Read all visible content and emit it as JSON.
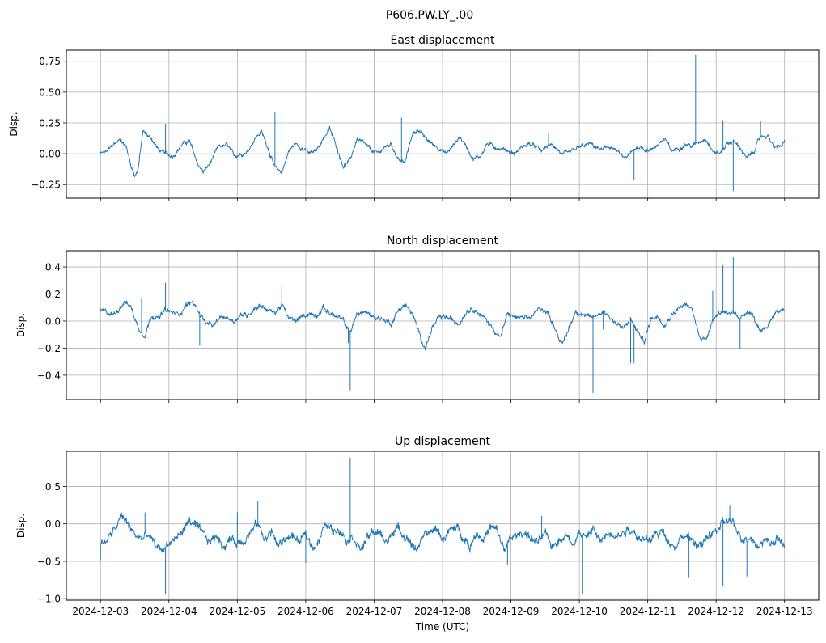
{
  "suptitle": "P606.PW.LY_.00",
  "chart_data": [
    {
      "type": "line",
      "title": "East displacement",
      "ylabel": "Disp.",
      "xlabel": "",
      "ylim": [
        -0.36,
        0.84
      ],
      "yticks": [
        0.75,
        0.5,
        0.25,
        0.0,
        -0.25
      ],
      "ytick_labels": [
        "0.75",
        "0.50",
        "0.25",
        "0.00",
        "−0.25"
      ],
      "xticks_days": [
        0,
        1,
        2,
        3,
        4,
        5,
        6,
        7,
        8,
        9,
        10
      ],
      "xlim_days": [
        -0.5,
        10.5
      ],
      "grid": true,
      "color": "#1f77b4",
      "noise": 0.018,
      "series_x_days": [
        0,
        0.1,
        0.2,
        0.3,
        0.38,
        0.45,
        0.5,
        0.55,
        0.62,
        0.66,
        0.75,
        0.85,
        0.95,
        1.05,
        1.2,
        1.3,
        1.42,
        1.5,
        1.6,
        1.72,
        1.85,
        1.95,
        2.05,
        2.15,
        2.25,
        2.35,
        2.45,
        2.55,
        2.65,
        2.75,
        2.85,
        2.95,
        3.05,
        3.15,
        3.25,
        3.35,
        3.45,
        3.55,
        3.65,
        3.75,
        3.85,
        3.95,
        4.05,
        4.15,
        4.25,
        4.35,
        4.45,
        4.55,
        4.65,
        4.75,
        4.85,
        4.95,
        5.05,
        5.15,
        5.25,
        5.35,
        5.45,
        5.55,
        5.65,
        5.75,
        5.85,
        5.95,
        6.05,
        6.15,
        6.25,
        6.35,
        6.45,
        6.55,
        6.65,
        6.75,
        6.85,
        6.95,
        7.05,
        7.15,
        7.25,
        7.35,
        7.45,
        7.55,
        7.65,
        7.75,
        7.85,
        7.95,
        8.05,
        8.15,
        8.25,
        8.35,
        8.45,
        8.55,
        8.65,
        8.75,
        8.85,
        8.95,
        9.05,
        9.15,
        9.25,
        9.35,
        9.45,
        9.55,
        9.65,
        9.75,
        9.85,
        9.95,
        10.0
      ],
      "series_values": [
        0.0,
        0.02,
        0.08,
        0.12,
        0.05,
        -0.1,
        -0.18,
        -0.12,
        0.18,
        0.16,
        0.12,
        0.03,
        0.0,
        -0.02,
        0.08,
        0.1,
        -0.08,
        -0.15,
        -0.08,
        0.05,
        0.07,
        -0.02,
        0.0,
        0.02,
        0.12,
        0.18,
        0.05,
        -0.12,
        -0.15,
        0.02,
        0.08,
        0.05,
        0.0,
        0.02,
        0.12,
        0.2,
        0.06,
        -0.1,
        -0.05,
        0.12,
        0.08,
        0.03,
        0.0,
        0.05,
        0.08,
        -0.04,
        -0.08,
        0.15,
        0.2,
        0.12,
        0.08,
        0.05,
        0.0,
        0.06,
        0.14,
        0.06,
        -0.04,
        -0.02,
        0.08,
        0.06,
        0.04,
        0.03,
        0.0,
        0.05,
        0.08,
        0.06,
        0.02,
        0.07,
        0.06,
        -0.01,
        0.0,
        0.04,
        0.06,
        0.08,
        0.05,
        0.03,
        0.06,
        0.02,
        -0.04,
        0.0,
        0.06,
        0.04,
        0.03,
        0.08,
        0.12,
        0.02,
        0.05,
        0.08,
        0.06,
        0.1,
        0.13,
        0.02,
        0.0,
        0.08,
        0.1,
        0.05,
        -0.04,
        0.02,
        0.14,
        0.15,
        0.05,
        0.06,
        0.1
      ],
      "spikes": [
        {
          "x": 0.95,
          "y": 0.24
        },
        {
          "x": 2.55,
          "y": 0.34
        },
        {
          "x": 4.4,
          "y": 0.29
        },
        {
          "x": 6.55,
          "y": 0.16
        },
        {
          "x": 7.8,
          "y": -0.21
        },
        {
          "x": 8.7,
          "y": 0.8
        },
        {
          "x": 9.25,
          "y": -0.3
        },
        {
          "x": 9.1,
          "y": 0.27
        },
        {
          "x": 9.65,
          "y": 0.26
        }
      ]
    },
    {
      "type": "line",
      "title": "North displacement",
      "ylabel": "Disp.",
      "xlabel": "",
      "ylim": [
        -0.58,
        0.52
      ],
      "yticks": [
        0.4,
        0.2,
        0.0,
        -0.2,
        -0.4
      ],
      "ytick_labels": [
        "0.4",
        "0.2",
        "0.0",
        "−0.2",
        "−0.4"
      ],
      "xticks_days": [
        0,
        1,
        2,
        3,
        4,
        5,
        6,
        7,
        8,
        9,
        10
      ],
      "xlim_days": [
        -0.5,
        10.5
      ],
      "grid": true,
      "color": "#1f77b4",
      "noise": 0.02,
      "series_x_days": [
        0,
        0.1,
        0.2,
        0.35,
        0.45,
        0.55,
        0.65,
        0.75,
        0.85,
        0.95,
        1.05,
        1.15,
        1.25,
        1.35,
        1.45,
        1.55,
        1.65,
        1.75,
        1.85,
        1.95,
        2.05,
        2.15,
        2.25,
        2.35,
        2.45,
        2.55,
        2.65,
        2.75,
        2.85,
        2.95,
        3.05,
        3.15,
        3.25,
        3.35,
        3.45,
        3.55,
        3.65,
        3.75,
        3.85,
        3.95,
        4.05,
        4.15,
        4.25,
        4.35,
        4.45,
        4.55,
        4.65,
        4.75,
        4.85,
        4.95,
        5.05,
        5.15,
        5.25,
        5.35,
        5.45,
        5.55,
        5.65,
        5.75,
        5.85,
        5.95,
        6.05,
        6.15,
        6.25,
        6.35,
        6.45,
        6.55,
        6.65,
        6.75,
        6.85,
        6.95,
        7.05,
        7.15,
        7.25,
        7.35,
        7.45,
        7.55,
        7.65,
        7.75,
        7.85,
        7.95,
        8.05,
        8.15,
        8.25,
        8.35,
        8.45,
        8.55,
        8.65,
        8.75,
        8.85,
        8.95,
        9.05,
        9.15,
        9.25,
        9.35,
        9.45,
        9.55,
        9.65,
        9.75,
        9.85,
        9.95,
        10.0
      ],
      "series_values": [
        0.08,
        0.06,
        0.05,
        0.15,
        0.1,
        -0.05,
        -0.1,
        0.05,
        0.02,
        0.08,
        0.06,
        0.05,
        0.12,
        0.14,
        0.06,
        -0.02,
        -0.04,
        0.02,
        0.03,
        0.0,
        0.05,
        0.04,
        0.1,
        0.12,
        0.08,
        0.06,
        0.12,
        0.02,
        0.0,
        0.03,
        0.06,
        0.04,
        0.1,
        0.06,
        0.03,
        0.0,
        -0.08,
        0.05,
        0.07,
        0.04,
        0.03,
        0.01,
        -0.02,
        0.08,
        0.12,
        0.06,
        -0.08,
        -0.2,
        -0.05,
        0.02,
        0.03,
        0.0,
        -0.01,
        0.08,
        0.1,
        0.05,
        0.0,
        -0.06,
        -0.12,
        0.05,
        0.03,
        0.02,
        0.01,
        0.06,
        0.1,
        0.05,
        -0.05,
        -0.18,
        -0.05,
        0.08,
        0.05,
        0.02,
        0.04,
        0.08,
        0.03,
        -0.02,
        -0.06,
        0.02,
        -0.08,
        -0.15,
        0.02,
        0.04,
        -0.02,
        0.05,
        0.1,
        0.12,
        0.08,
        -0.1,
        -0.14,
        0.02,
        0.06,
        0.08,
        0.05,
        0.0,
        0.08,
        0.03,
        -0.1,
        -0.04,
        0.06,
        0.08,
        0.1
      ],
      "spikes": [
        {
          "x": 0.95,
          "y": 0.28
        },
        {
          "x": 0.6,
          "y": 0.17
        },
        {
          "x": 1.45,
          "y": -0.18
        },
        {
          "x": 2.65,
          "y": 0.26
        },
        {
          "x": 3.62,
          "y": -0.16
        },
        {
          "x": 3.65,
          "y": -0.51
        },
        {
          "x": 7.2,
          "y": -0.53
        },
        {
          "x": 7.35,
          "y": -0.06
        },
        {
          "x": 7.75,
          "y": -0.31
        },
        {
          "x": 7.8,
          "y": -0.31
        },
        {
          "x": 8.95,
          "y": 0.22
        },
        {
          "x": 9.1,
          "y": 0.41
        },
        {
          "x": 9.25,
          "y": 0.47
        },
        {
          "x": 9.35,
          "y": -0.2
        }
      ]
    },
    {
      "type": "line",
      "title": "Up displacement",
      "ylabel": "Disp.",
      "xlabel": "Time (UTC)",
      "ylim": [
        -1.02,
        0.97
      ],
      "yticks": [
        0.5,
        0.0,
        -0.5,
        -1.0
      ],
      "ytick_labels": [
        "0.5",
        "0.0",
        "−0.5",
        "−1.0"
      ],
      "xticks_days": [
        0,
        1,
        2,
        3,
        4,
        5,
        6,
        7,
        8,
        9,
        10
      ],
      "xtick_labels": [
        "2024-12-03",
        "2024-12-04",
        "2024-12-05",
        "2024-12-06",
        "2024-12-07",
        "2024-12-08",
        "2024-12-09",
        "2024-12-10",
        "2024-12-11",
        "2024-12-12",
        "2024-12-13"
      ],
      "xlim_days": [
        -0.5,
        10.5
      ],
      "grid": true,
      "color": "#1f77b4",
      "noise": 0.06,
      "series_x_days": [
        0,
        0.1,
        0.2,
        0.3,
        0.4,
        0.5,
        0.6,
        0.7,
        0.8,
        0.9,
        1.0,
        1.1,
        1.2,
        1.3,
        1.4,
        1.5,
        1.6,
        1.7,
        1.8,
        1.9,
        2.0,
        2.1,
        2.2,
        2.3,
        2.4,
        2.5,
        2.6,
        2.7,
        2.8,
        2.9,
        3.0,
        3.1,
        3.2,
        3.3,
        3.4,
        3.5,
        3.6,
        3.7,
        3.8,
        3.9,
        4.0,
        4.1,
        4.2,
        4.3,
        4.4,
        4.5,
        4.6,
        4.7,
        4.8,
        4.9,
        5.0,
        5.1,
        5.2,
        5.3,
        5.4,
        5.5,
        5.6,
        5.7,
        5.8,
        5.9,
        6.0,
        6.1,
        6.2,
        6.3,
        6.4,
        6.5,
        6.6,
        6.7,
        6.8,
        6.9,
        7.0,
        7.1,
        7.2,
        7.3,
        7.4,
        7.5,
        7.6,
        7.7,
        7.8,
        7.9,
        8.0,
        8.1,
        8.2,
        8.3,
        8.4,
        8.5,
        8.6,
        8.7,
        8.8,
        8.9,
        9.0,
        9.1,
        9.2,
        9.3,
        9.4,
        9.5,
        9.6,
        9.7,
        9.8,
        9.9,
        10.0
      ],
      "series_values": [
        -0.3,
        -0.2,
        -0.1,
        0.1,
        0.0,
        -0.15,
        -0.2,
        -0.15,
        -0.3,
        -0.35,
        -0.25,
        -0.2,
        -0.1,
        0.05,
        -0.05,
        -0.15,
        -0.25,
        -0.15,
        -0.3,
        -0.2,
        -0.25,
        -0.2,
        -0.1,
        0.0,
        -0.2,
        -0.1,
        -0.3,
        -0.2,
        -0.15,
        -0.25,
        -0.15,
        -0.3,
        -0.2,
        0.0,
        -0.1,
        -0.05,
        -0.2,
        -0.15,
        -0.35,
        -0.2,
        -0.1,
        -0.15,
        -0.25,
        -0.05,
        -0.1,
        -0.2,
        -0.35,
        -0.2,
        -0.15,
        -0.05,
        -0.2,
        -0.1,
        -0.05,
        -0.15,
        -0.3,
        -0.1,
        -0.2,
        -0.05,
        -0.1,
        -0.35,
        -0.2,
        -0.15,
        -0.1,
        -0.2,
        -0.25,
        -0.15,
        -0.3,
        -0.2,
        -0.15,
        -0.25,
        -0.1,
        -0.2,
        -0.05,
        -0.25,
        -0.15,
        -0.1,
        -0.15,
        -0.05,
        -0.1,
        -0.2,
        -0.25,
        -0.15,
        -0.1,
        -0.2,
        -0.3,
        -0.15,
        -0.2,
        -0.25,
        -0.3,
        -0.15,
        -0.1,
        0.0,
        0.05,
        -0.1,
        -0.2,
        -0.15,
        -0.3,
        -0.2,
        -0.25,
        -0.2,
        -0.3
      ],
      "spikes": [
        {
          "x": -0.0,
          "y": -0.48
        },
        {
          "x": 0.95,
          "y": -0.93
        },
        {
          "x": 0.65,
          "y": 0.15
        },
        {
          "x": 2.0,
          "y": 0.15
        },
        {
          "x": 2.3,
          "y": 0.3
        },
        {
          "x": 3.65,
          "y": 0.88
        },
        {
          "x": 3.0,
          "y": -0.52
        },
        {
          "x": 5.95,
          "y": -0.55
        },
        {
          "x": 6.45,
          "y": 0.1
        },
        {
          "x": 7.05,
          "y": -0.93
        },
        {
          "x": 8.6,
          "y": -0.72
        },
        {
          "x": 9.1,
          "y": -0.83
        },
        {
          "x": 9.45,
          "y": -0.7
        },
        {
          "x": 9.2,
          "y": 0.25
        }
      ]
    }
  ]
}
